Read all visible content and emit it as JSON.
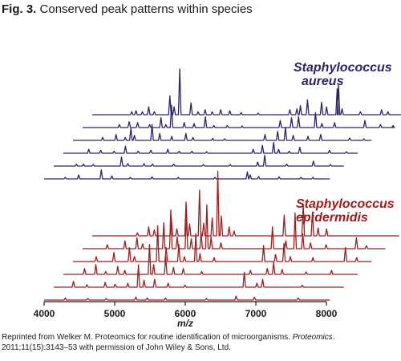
{
  "figure": {
    "number": "Fig. 3.",
    "title": "Conserved peak patterns within species"
  },
  "caption": {
    "pre": "Reprinted from Welker M. Proteomics for routine identification of microorganisms. ",
    "journal": "Proteomics",
    "post": ". 2011;11(15):3143–53 with permission of John Wiley & Sons, Ltd."
  },
  "chart_data": {
    "type": "line",
    "xlabel": "m/z",
    "xlim": [
      4000,
      8000
    ],
    "xticks": [
      "4000",
      "5000",
      "6000",
      "7000",
      "8000"
    ],
    "groups": [
      {
        "label_line1": "Staphylococcus",
        "label_line2": "aureus",
        "color": "#2a2466",
        "spectra": [
          {
            "offset": 0,
            "peaks": [
              [
                4300,
                3
              ],
              [
                4490,
                8
              ],
              [
                4810,
                18
              ],
              [
                4960,
                6
              ],
              [
                5220,
                3
              ],
              [
                5530,
                4
              ],
              [
                5900,
                3
              ],
              [
                6420,
                3
              ],
              [
                6880,
                14
              ],
              [
                6920,
                8
              ],
              [
                7040,
                5
              ],
              [
                7330,
                4
              ],
              [
                7640,
                3
              ],
              [
                7810,
                3
              ]
            ]
          },
          {
            "offset": 60,
            "peaks": [
              [
                4320,
                4
              ],
              [
                4420,
                4
              ],
              [
                4560,
                3
              ],
              [
                4960,
                18
              ],
              [
                5050,
                5
              ],
              [
                5280,
                5
              ],
              [
                5400,
                4
              ],
              [
                5700,
                4
              ],
              [
                6120,
                3
              ],
              [
                6500,
                3
              ],
              [
                6890,
                8
              ],
              [
                6990,
                22
              ],
              [
                7300,
                4
              ],
              [
                7680,
                10
              ],
              [
                7920,
                3
              ]
            ]
          },
          {
            "offset": 120,
            "peaks": [
              [
                4360,
                8
              ],
              [
                4530,
                6
              ],
              [
                4720,
                4
              ],
              [
                4880,
                14
              ],
              [
                5060,
                4
              ],
              [
                5240,
                6
              ],
              [
                5480,
                8
              ],
              [
                5640,
                4
              ],
              [
                5820,
                4
              ],
              [
                6030,
                3
              ],
              [
                6690,
                8
              ],
              [
                6820,
                16
              ],
              [
                6980,
                22
              ],
              [
                7050,
                8
              ],
              [
                7200,
                4
              ],
              [
                7350,
                12
              ],
              [
                7770,
                6
              ],
              [
                8010,
                3
              ]
            ]
          },
          {
            "offset": 180,
            "peaks": [
              [
                4420,
                6
              ],
              [
                4610,
                12
              ],
              [
                4740,
                6
              ],
              [
                4820,
                24
              ],
              [
                4870,
                10
              ],
              [
                5120,
                32
              ],
              [
                5230,
                14
              ],
              [
                5400,
                8
              ],
              [
                5600,
                14
              ],
              [
                5700,
                6
              ],
              [
                5980,
                4
              ],
              [
                6150,
                3
              ],
              [
                6720,
                12
              ],
              [
                6900,
                18
              ],
              [
                7010,
                26
              ],
              [
                7120,
                10
              ],
              [
                7330,
                8
              ],
              [
                7510,
                12
              ],
              [
                7920,
                5
              ],
              [
                8120,
                3
              ]
            ]
          },
          {
            "offset": 240,
            "peaks": [
              [
                4520,
                6
              ],
              [
                4660,
                12
              ],
              [
                4780,
                10
              ],
              [
                4950,
                6
              ],
              [
                5110,
                20
              ],
              [
                5180,
                6
              ],
              [
                5260,
                45
              ],
              [
                5440,
                10
              ],
              [
                5580,
                8
              ],
              [
                5740,
                22
              ],
              [
                5860,
                4
              ],
              [
                6050,
                4
              ],
              [
                6260,
                3
              ],
              [
                6800,
                14
              ],
              [
                6960,
                20
              ],
              [
                7060,
                22
              ],
              [
                7300,
                30
              ],
              [
                7390,
                8
              ],
              [
                7570,
                10
              ],
              [
                8000,
                14
              ],
              [
                8220,
                6
              ],
              [
                8400,
                4
              ]
            ]
          },
          {
            "offset": 300,
            "peaks": [
              [
                4560,
                6
              ],
              [
                4620,
                8
              ],
              [
                4710,
                6
              ],
              [
                4800,
                16
              ],
              [
                4880,
                6
              ],
              [
                5100,
                38
              ],
              [
                5160,
                16
              ],
              [
                5240,
                92
              ],
              [
                5400,
                24
              ],
              [
                5500,
                6
              ],
              [
                5600,
                10
              ],
              [
                5700,
                6
              ],
              [
                5820,
                10
              ],
              [
                5950,
                8
              ],
              [
                6110,
                4
              ],
              [
                6350,
                3
              ],
              [
                6800,
                10
              ],
              [
                6900,
                12
              ],
              [
                6950,
                18
              ],
              [
                7050,
                30
              ],
              [
                7250,
                25
              ],
              [
                7320,
                16
              ],
              [
                7470,
                52
              ],
              [
                7490,
                60
              ],
              [
                7540,
                12
              ],
              [
                7800,
                6
              ],
              [
                8100,
                10
              ],
              [
                8190,
                6
              ],
              [
                8400,
                4
              ]
            ]
          }
        ]
      },
      {
        "label_line1": "Staphylococcus",
        "label_line2": "epidermidis",
        "color": "#a01c1c",
        "spectra": [
          {
            "offset": 0,
            "peaks": [
              [
                4300,
                4
              ],
              [
                4620,
                3
              ],
              [
                4880,
                3
              ],
              [
                5300,
                6
              ],
              [
                5460,
                4
              ],
              [
                5720,
                4
              ],
              [
                6300,
                3
              ],
              [
                6720,
                8
              ],
              [
                6980,
                6
              ],
              [
                7600,
                4
              ]
            ]
          },
          {
            "offset": 60,
            "peaks": [
              [
                4280,
                12
              ],
              [
                4470,
                5
              ],
              [
                4730,
                10
              ],
              [
                4870,
                6
              ],
              [
                5050,
                8
              ],
              [
                5200,
                45
              ],
              [
                5280,
                14
              ],
              [
                5430,
                16
              ],
              [
                5620,
                8
              ],
              [
                5860,
                4
              ],
              [
                6700,
                30
              ],
              [
                6880,
                8
              ],
              [
                6960,
                16
              ],
              [
                7520,
                4
              ]
            ]
          },
          {
            "offset": 120,
            "peaks": [
              [
                4300,
                12
              ],
              [
                4460,
                20
              ],
              [
                4600,
                6
              ],
              [
                4770,
                16
              ],
              [
                4870,
                8
              ],
              [
                5220,
                60
              ],
              [
                5280,
                20
              ],
              [
                5450,
                36
              ],
              [
                5560,
                14
              ],
              [
                5700,
                12
              ],
              [
                5960,
                6
              ],
              [
                6650,
                8
              ],
              [
                6890,
                12
              ],
              [
                6980,
                24
              ],
              [
                7100,
                10
              ],
              [
                7440,
                5
              ],
              [
                7800,
                8
              ]
            ]
          },
          {
            "offset": 180,
            "peaks": [
              [
                4330,
                10
              ],
              [
                4580,
                18
              ],
              [
                4800,
                28
              ],
              [
                4870,
                10
              ],
              [
                5200,
                72
              ],
              [
                5320,
                28
              ],
              [
                5500,
                34
              ],
              [
                5580,
                10
              ],
              [
                5740,
                56
              ],
              [
                5800,
                16
              ],
              [
                6000,
                8
              ],
              [
                6700,
                32
              ],
              [
                6870,
                14
              ],
              [
                6990,
                36
              ],
              [
                7080,
                10
              ],
              [
                7400,
                8
              ],
              [
                7860,
                28
              ],
              [
                8020,
                8
              ]
            ]
          },
          {
            "offset": 240,
            "peaks": [
              [
                4350,
                8
              ],
              [
                4600,
                16
              ],
              [
                4770,
                22
              ],
              [
                4850,
                10
              ],
              [
                5150,
                52
              ],
              [
                5250,
                78
              ],
              [
                5340,
                24
              ],
              [
                5470,
                70
              ],
              [
                5540,
                20
              ],
              [
                5680,
                32
              ],
              [
                5760,
                88
              ],
              [
                5820,
                24
              ],
              [
                5960,
                12
              ],
              [
                6690,
                44
              ],
              [
                6880,
                16
              ],
              [
                7010,
                72
              ],
              [
                7120,
                30
              ],
              [
                7230,
                12
              ],
              [
                7450,
                8
              ],
              [
                7880,
                22
              ],
              [
                8020,
                6
              ]
            ]
          },
          {
            "offset": 300,
            "peaks": [
              [
                4640,
                6
              ],
              [
                4800,
                18
              ],
              [
                4880,
                12
              ],
              [
                5120,
                36
              ],
              [
                5200,
                14
              ],
              [
                5330,
                68
              ],
              [
                5380,
                24
              ],
              [
                5520,
                92
              ],
              [
                5580,
                26
              ],
              [
                5700,
                36
              ],
              [
                5780,
                130
              ],
              [
                5830,
                40
              ],
              [
                5940,
                18
              ],
              [
                6010,
                10
              ],
              [
                6720,
                42
              ],
              [
                6990,
                64
              ],
              [
                7120,
                48
              ],
              [
                7200,
                16
              ],
              [
                7320,
                14
              ]
            ]
          }
        ]
      }
    ]
  }
}
